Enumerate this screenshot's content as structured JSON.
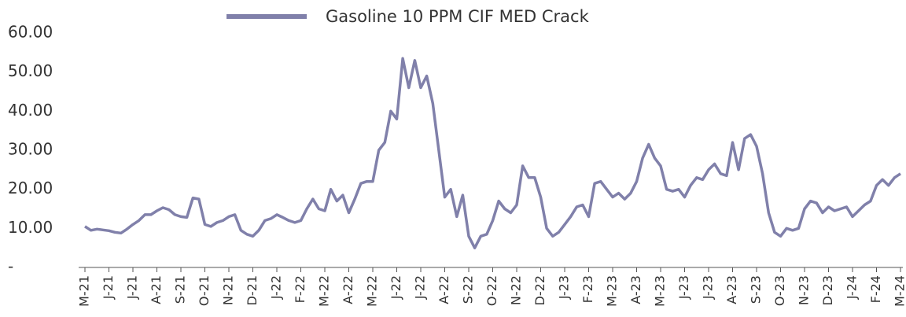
{
  "chart_data": {
    "type": "line",
    "categories": [
      "M-21",
      null,
      null,
      null,
      "J-21",
      null,
      null,
      null,
      "J-21",
      null,
      null,
      null,
      "A-21",
      null,
      null,
      null,
      "S-21",
      null,
      null,
      null,
      "O-21",
      null,
      null,
      null,
      "N-21",
      null,
      null,
      null,
      "D-21",
      null,
      null,
      null,
      "J-22",
      null,
      null,
      null,
      "F-22",
      null,
      null,
      null,
      "M-22",
      null,
      null,
      null,
      "A-22",
      null,
      null,
      null,
      "M-22",
      null,
      null,
      null,
      "J-22",
      null,
      null,
      null,
      "J-22",
      null,
      null,
      null,
      "A-22",
      null,
      null,
      null,
      "S-22",
      null,
      null,
      null,
      "O-22",
      null,
      null,
      null,
      "N-22",
      null,
      null,
      null,
      "D-22",
      null,
      null,
      null,
      "J-23",
      null,
      null,
      null,
      "F-23",
      null,
      null,
      null,
      "M-23",
      null,
      null,
      null,
      "A-23",
      null,
      null,
      null,
      "M-23",
      null,
      null,
      null,
      "J-23",
      null,
      null,
      null,
      "J-23",
      null,
      null,
      null,
      "A-23",
      null,
      null,
      null,
      "S-23",
      null,
      null,
      null,
      "O-23",
      null,
      null,
      null,
      "N-23",
      null,
      null,
      null,
      "D-23",
      null,
      null,
      null,
      "J-24",
      null,
      null,
      null,
      "F-24",
      null,
      null,
      null,
      "M-24"
    ],
    "series": [
      {
        "name": "Gasoline 10 PPM CIF MED Crack",
        "color": "#8080aa",
        "values": [
          10.5,
          9.5,
          9.8,
          9.6,
          9.4,
          9.0,
          8.8,
          9.8,
          11,
          12,
          13.5,
          13.5,
          14.5,
          15.3,
          14.8,
          13.5,
          13,
          12.8,
          17.8,
          17.5,
          11,
          10.5,
          11.5,
          12,
          13,
          13.5,
          9.5,
          8.5,
          8,
          9.5,
          12,
          12.5,
          13.5,
          12.8,
          12,
          11.5,
          12,
          15,
          17.5,
          15,
          14.5,
          20,
          17,
          18.5,
          14,
          17.5,
          21.5,
          22,
          22,
          30,
          32,
          40,
          38,
          53.5,
          46,
          53,
          46,
          49,
          42,
          30,
          18,
          20,
          13,
          18.5,
          8,
          5,
          8,
          8.5,
          12,
          17,
          15,
          14,
          16,
          26,
          23,
          23,
          18,
          10,
          8,
          9,
          11,
          13,
          15.5,
          16,
          13,
          21.5,
          22,
          20,
          18,
          19,
          17.5,
          19,
          22,
          28,
          31.5,
          28,
          26,
          20,
          19.5,
          20,
          18,
          21,
          23,
          22.5,
          25,
          26.5,
          24,
          23.5,
          32,
          25,
          33,
          34,
          31,
          24,
          14,
          9,
          8,
          10,
          9.5,
          10,
          15,
          17,
          16.5,
          14,
          15.5,
          14.5,
          15,
          15.5,
          13,
          14.5,
          16,
          17,
          21,
          22.5,
          21,
          23,
          24
        ]
      }
    ],
    "ylim": [
      0,
      60
    ],
    "yticks": [
      {
        "value": 0,
        "label": "-"
      },
      {
        "value": 10,
        "label": "10.00"
      },
      {
        "value": 20,
        "label": "20.00"
      },
      {
        "value": 30,
        "label": "30.00"
      },
      {
        "value": 40,
        "label": "40.00"
      },
      {
        "value": 50,
        "label": "50.00"
      },
      {
        "value": 60,
        "label": "60.00"
      }
    ],
    "legend": "top"
  }
}
